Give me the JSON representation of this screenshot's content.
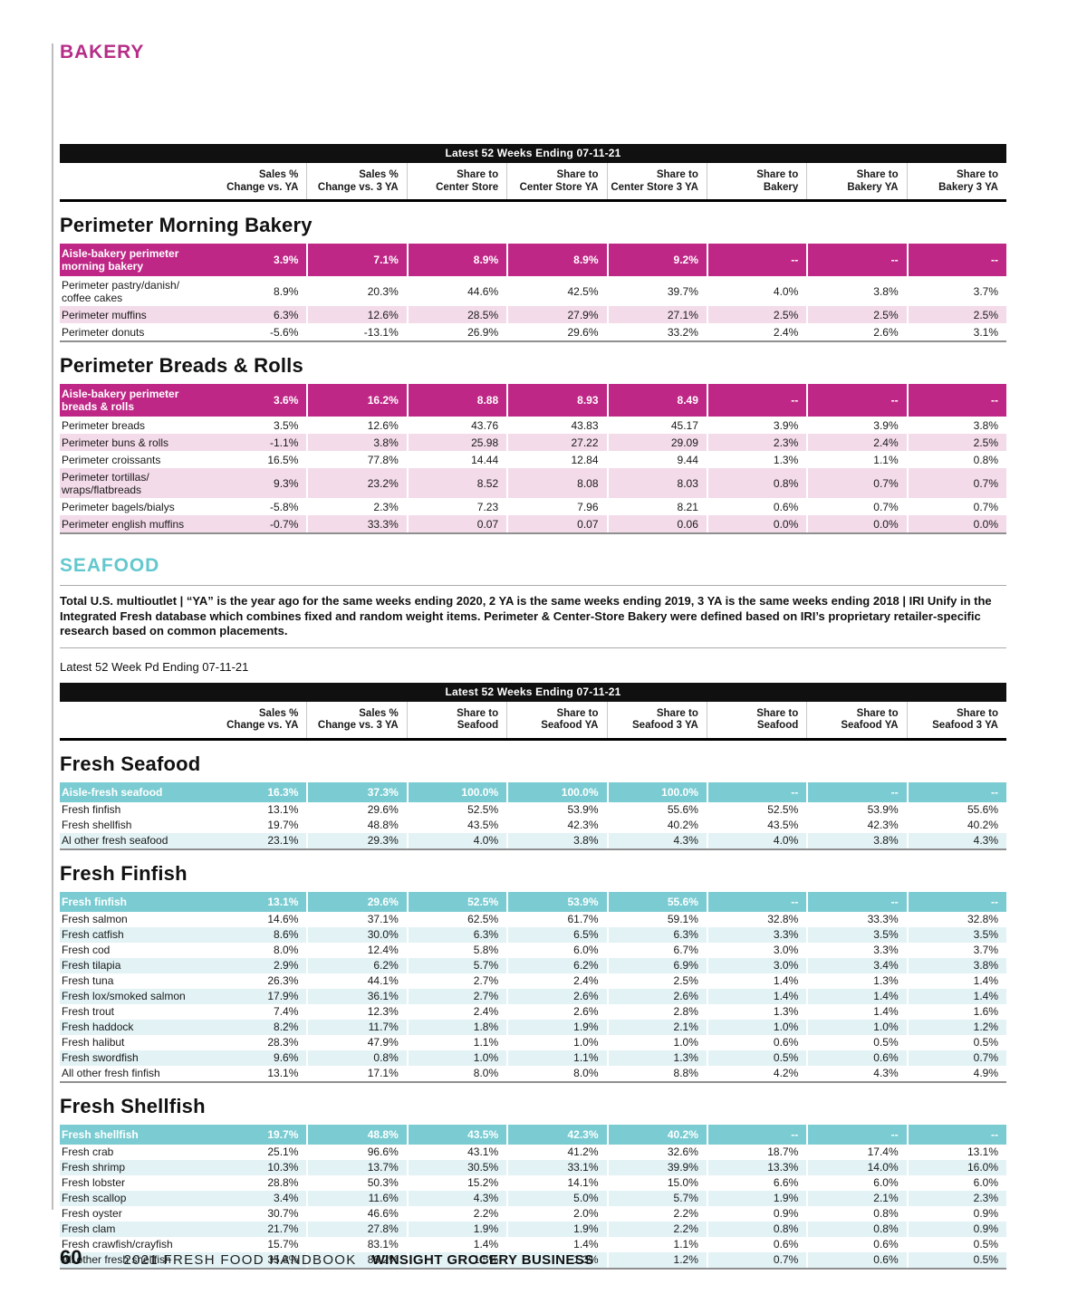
{
  "colors": {
    "bakery_accent": "#bf2787",
    "bakery_tint": "#f3dbe9",
    "bakery_heading": "#b62d87",
    "seafood_accent": "#7accd2",
    "seafood_tint": "#e2f2f5",
    "seafood_heading": "#63c8ce"
  },
  "bakery": {
    "kicker": "BAKERY",
    "period_bar": "Latest 52 Weeks Ending 07-11-21",
    "columns": [
      "Sales %\nChange vs. YA",
      "Sales %\nChange vs. 3 YA",
      "Share to\nCenter Store",
      "Share to\nCenter Store YA",
      "Share to\nCenter Store 3 YA",
      "Share to\nBakery",
      "Share to\nBakery YA",
      "Share to\nBakery 3 YA"
    ],
    "tables": {
      "morning": {
        "heading": "Perimeter Morning Bakery",
        "aisle": {
          "label": "Aisle-bakery perimeter\nmorning bakery",
          "values": [
            "3.9%",
            "7.1%",
            "8.9%",
            "8.9%",
            "9.2%",
            "--",
            "--",
            "--"
          ]
        },
        "rows": [
          {
            "label": "Perimeter pastry/danish/\ncoffee cakes",
            "shaded": false,
            "values": [
              "8.9%",
              "20.3%",
              "44.6%",
              "42.5%",
              "39.7%",
              "4.0%",
              "3.8%",
              "3.7%"
            ]
          },
          {
            "label": "Perimeter muffins",
            "shaded": true,
            "values": [
              "6.3%",
              "12.6%",
              "28.5%",
              "27.9%",
              "27.1%",
              "2.5%",
              "2.5%",
              "2.5%"
            ]
          },
          {
            "label": "Perimeter donuts",
            "shaded": false,
            "values": [
              "-5.6%",
              "-13.1%",
              "26.9%",
              "29.6%",
              "33.2%",
              "2.4%",
              "2.6%",
              "3.1%"
            ]
          }
        ]
      },
      "breads_rolls": {
        "heading": "Perimeter Breads & Rolls",
        "aisle": {
          "label": "Aisle-bakery perimeter\nbreads & rolls",
          "values": [
            "3.6%",
            "16.2%",
            "8.88",
            "8.93",
            "8.49",
            "--",
            "--",
            "--"
          ]
        },
        "rows": [
          {
            "label": "Perimeter breads",
            "shaded": false,
            "values": [
              "3.5%",
              "12.6%",
              "43.76",
              "43.83",
              "45.17",
              "3.9%",
              "3.9%",
              "3.8%"
            ]
          },
          {
            "label": "Perimeter buns & rolls",
            "shaded": true,
            "values": [
              "-1.1%",
              "3.8%",
              "25.98",
              "27.22",
              "29.09",
              "2.3%",
              "2.4%",
              "2.5%"
            ]
          },
          {
            "label": "Perimeter croissants",
            "shaded": false,
            "values": [
              "16.5%",
              "77.8%",
              "14.44",
              "12.84",
              "9.44",
              "1.3%",
              "1.1%",
              "0.8%"
            ]
          },
          {
            "label": "Perimeter tortillas/\nwraps/flatbreads",
            "shaded": true,
            "values": [
              "9.3%",
              "23.2%",
              "8.52",
              "8.08",
              "8.03",
              "0.8%",
              "0.7%",
              "0.7%"
            ]
          },
          {
            "label": "Perimeter bagels/bialys",
            "shaded": false,
            "values": [
              "-5.8%",
              "2.3%",
              "7.23",
              "7.96",
              "8.21",
              "0.6%",
              "0.7%",
              "0.7%"
            ]
          },
          {
            "label": "Perimeter english muffins",
            "shaded": true,
            "values": [
              "-0.7%",
              "33.3%",
              "0.07",
              "0.07",
              "0.06",
              "0.0%",
              "0.0%",
              "0.0%"
            ]
          }
        ]
      }
    }
  },
  "seafood": {
    "kicker": "SEAFOOD",
    "note": "Total U.S. multioutlet | “YA” is the year ago for the same weeks ending 2020, 2 YA is the same weeks ending 2019, 3 YA is the same weeks ending 2018 | IRI Unify in the Integrated Fresh database which combines fixed and random weight items. Perimeter & Center-Store Bakery were defined based on IRI’s proprietary retailer-specific research based on common placements.",
    "period_caption": "Latest 52 Week Pd Ending 07-11-21",
    "period_bar": "Latest 52 Weeks Ending 07-11-21",
    "columns": [
      "Sales %\nChange vs. YA",
      "Sales %\nChange vs. 3 YA",
      "Share to\nSeafood",
      "Share to\nSeafood YA",
      "Share to\nSeafood 3 YA",
      "Share to\nSeafood",
      "Share to\nSeafood YA",
      "Share to\nSeafood 3 YA"
    ],
    "tables": {
      "fresh_seafood": {
        "heading": "Fresh Seafood",
        "aisle": {
          "label": "Aisle-fresh seafood",
          "values": [
            "16.3%",
            "37.3%",
            "100.0%",
            "100.0%",
            "100.0%",
            "--",
            "--",
            "--"
          ]
        },
        "rows": [
          {
            "label": "Fresh finfish",
            "shaded": false,
            "values": [
              "13.1%",
              "29.6%",
              "52.5%",
              "53.9%",
              "55.6%",
              "52.5%",
              "53.9%",
              "55.6%"
            ]
          },
          {
            "label": "Fresh shellfish",
            "shaded": false,
            "values": [
              "19.7%",
              "48.8%",
              "43.5%",
              "42.3%",
              "40.2%",
              "43.5%",
              "42.3%",
              "40.2%"
            ]
          },
          {
            "label": "Al other fresh seafood",
            "shaded": true,
            "values": [
              "23.1%",
              "29.3%",
              "4.0%",
              "3.8%",
              "4.3%",
              "4.0%",
              "3.8%",
              "4.3%"
            ]
          }
        ]
      },
      "fresh_finfish": {
        "heading": "Fresh Finfish",
        "aisle": {
          "label": "Fresh finfish",
          "values": [
            "13.1%",
            "29.6%",
            "52.5%",
            "53.9%",
            "55.6%",
            "--",
            "--",
            "--"
          ]
        },
        "rows": [
          {
            "label": "Fresh salmon",
            "shaded": false,
            "values": [
              "14.6%",
              "37.1%",
              "62.5%",
              "61.7%",
              "59.1%",
              "32.8%",
              "33.3%",
              "32.8%"
            ]
          },
          {
            "label": "Fresh catfish",
            "shaded": true,
            "values": [
              "8.6%",
              "30.0%",
              "6.3%",
              "6.5%",
              "6.3%",
              "3.3%",
              "3.5%",
              "3.5%"
            ]
          },
          {
            "label": "Fresh cod",
            "shaded": false,
            "values": [
              "8.0%",
              "12.4%",
              "5.8%",
              "6.0%",
              "6.7%",
              "3.0%",
              "3.3%",
              "3.7%"
            ]
          },
          {
            "label": "Fresh tilapia",
            "shaded": true,
            "values": [
              "2.9%",
              "6.2%",
              "5.7%",
              "6.2%",
              "6.9%",
              "3.0%",
              "3.4%",
              "3.8%"
            ]
          },
          {
            "label": "Fresh tuna",
            "shaded": false,
            "values": [
              "26.3%",
              "44.1%",
              "2.7%",
              "2.4%",
              "2.5%",
              "1.4%",
              "1.3%",
              "1.4%"
            ]
          },
          {
            "label": "Fresh lox/smoked salmon",
            "shaded": true,
            "values": [
              "17.9%",
              "36.1%",
              "2.7%",
              "2.6%",
              "2.6%",
              "1.4%",
              "1.4%",
              "1.4%"
            ]
          },
          {
            "label": "Fresh trout",
            "shaded": false,
            "values": [
              "7.4%",
              "12.3%",
              "2.4%",
              "2.6%",
              "2.8%",
              "1.3%",
              "1.4%",
              "1.6%"
            ]
          },
          {
            "label": "Fresh haddock",
            "shaded": true,
            "values": [
              "8.2%",
              "11.7%",
              "1.8%",
              "1.9%",
              "2.1%",
              "1.0%",
              "1.0%",
              "1.2%"
            ]
          },
          {
            "label": "Fresh halibut",
            "shaded": false,
            "values": [
              "28.3%",
              "47.9%",
              "1.1%",
              "1.0%",
              "1.0%",
              "0.6%",
              "0.5%",
              "0.5%"
            ]
          },
          {
            "label": "Fresh swordfish",
            "shaded": true,
            "values": [
              "9.6%",
              "0.8%",
              "1.0%",
              "1.1%",
              "1.3%",
              "0.5%",
              "0.6%",
              "0.7%"
            ]
          },
          {
            "label": "All other fresh finfish",
            "shaded": false,
            "values": [
              "13.1%",
              "17.1%",
              "8.0%",
              "8.0%",
              "8.8%",
              "4.2%",
              "4.3%",
              "4.9%"
            ]
          }
        ]
      },
      "fresh_shellfish": {
        "heading": "Fresh Shellfish",
        "aisle": {
          "label": "Fresh shellfish",
          "values": [
            "19.7%",
            "48.8%",
            "43.5%",
            "42.3%",
            "40.2%",
            "--",
            "--",
            "--"
          ]
        },
        "rows": [
          {
            "label": "Fresh crab",
            "shaded": false,
            "values": [
              "25.1%",
              "96.6%",
              "43.1%",
              "41.2%",
              "32.6%",
              "18.7%",
              "17.4%",
              "13.1%"
            ]
          },
          {
            "label": "Fresh shrimp",
            "shaded": true,
            "values": [
              "10.3%",
              "13.7%",
              "30.5%",
              "33.1%",
              "39.9%",
              "13.3%",
              "14.0%",
              "16.0%"
            ]
          },
          {
            "label": "Fresh lobster",
            "shaded": false,
            "values": [
              "28.8%",
              "50.3%",
              "15.2%",
              "14.1%",
              "15.0%",
              "6.6%",
              "6.0%",
              "6.0%"
            ]
          },
          {
            "label": "Fresh scallop",
            "shaded": true,
            "values": [
              "3.4%",
              "11.6%",
              "4.3%",
              "5.0%",
              "5.7%",
              "1.9%",
              "2.1%",
              "2.3%"
            ]
          },
          {
            "label": "Fresh oyster",
            "shaded": false,
            "values": [
              "30.7%",
              "46.6%",
              "2.2%",
              "2.0%",
              "2.2%",
              "0.9%",
              "0.8%",
              "0.9%"
            ]
          },
          {
            "label": "Fresh clam",
            "shaded": true,
            "values": [
              "21.7%",
              "27.8%",
              "1.9%",
              "1.9%",
              "2.2%",
              "0.8%",
              "0.8%",
              "0.9%"
            ]
          },
          {
            "label": "Fresh crawfish/crayfish",
            "shaded": false,
            "values": [
              "15.7%",
              "83.1%",
              "1.4%",
              "1.4%",
              "1.1%",
              "0.6%",
              "0.6%",
              "0.5%"
            ]
          },
          {
            "label": "All other fresh shellfish",
            "shaded": true,
            "values": [
              "35.8%",
              "86.2%",
              "1.5%",
              "1.3%",
              "1.2%",
              "0.7%",
              "0.6%",
              "0.5%"
            ]
          }
        ]
      }
    }
  },
  "footer": {
    "page_number": "60",
    "book": "2021 FRESH FOOD HANDBOOK",
    "brand": "WINSIGHT GROCERY BUSINESS"
  }
}
